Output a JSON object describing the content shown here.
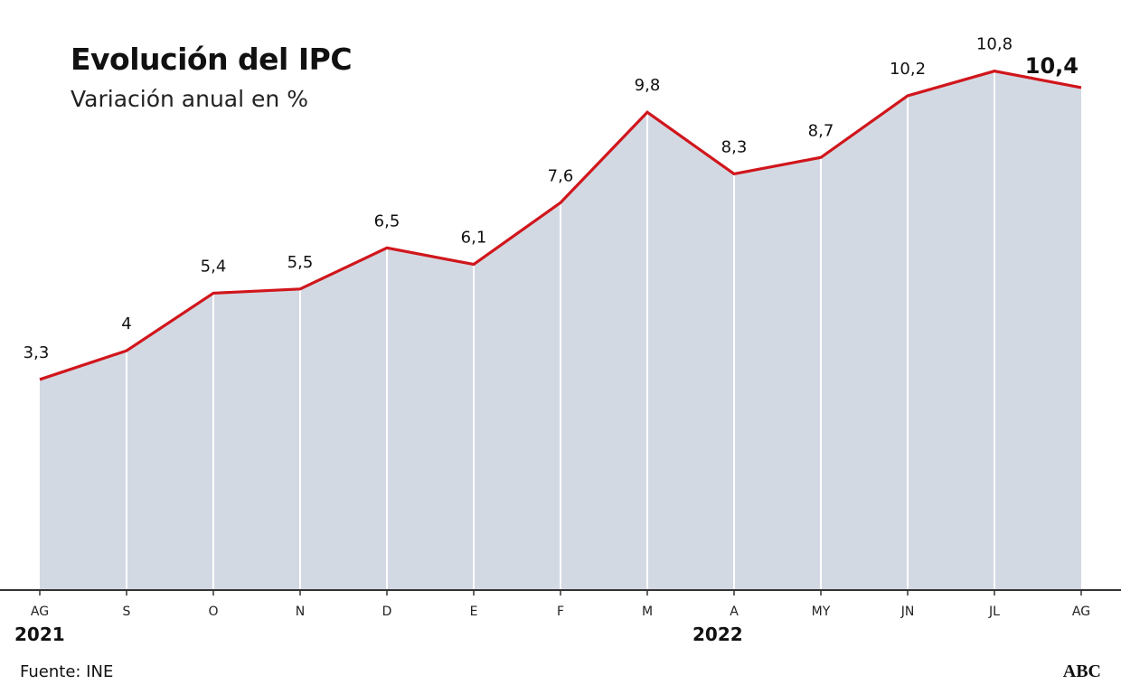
{
  "title": "Evolución del IPC",
  "subtitle": "Variación anual en %",
  "source": "Fuente: INE",
  "brand": "ABC",
  "colors": {
    "line": "#d0161c",
    "area": "#d3d9e3",
    "axis": "#333333",
    "gridline": "#ffffff"
  },
  "chart_data": {
    "type": "area",
    "categories": [
      "AG",
      "S",
      "O",
      "N",
      "D",
      "E",
      "F",
      "M",
      "A",
      "MY",
      "JN",
      "JL",
      "AG"
    ],
    "value_labels": [
      "3,3",
      "4",
      "5,4",
      "5,5",
      "6,5",
      "6,1",
      "7,6",
      "9,8",
      "8,3",
      "8,7",
      "10,2",
      "10,8",
      "10,4"
    ],
    "years": [
      {
        "label": "2021",
        "category_index": 0
      },
      {
        "label": "2022",
        "category_index": 8
      }
    ],
    "series": [
      {
        "values": [
          3.3,
          4.0,
          5.4,
          5.5,
          6.5,
          6.1,
          7.6,
          9.8,
          8.3,
          8.7,
          10.2,
          10.8,
          10.4
        ]
      }
    ],
    "highlight_last": true,
    "ylim": [
      -1.8,
      11.0
    ],
    "grid": false,
    "legend": "none"
  }
}
